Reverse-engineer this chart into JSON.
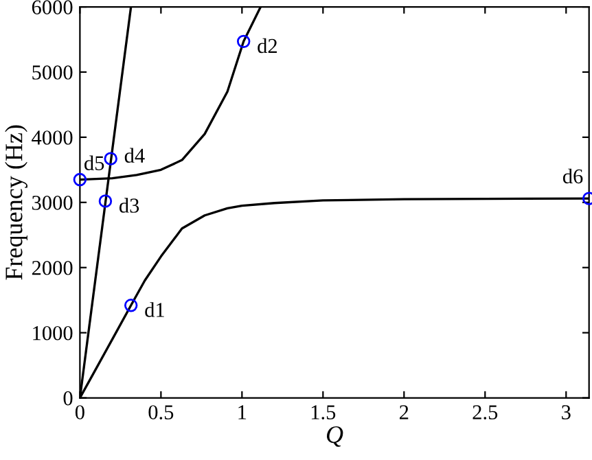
{
  "chart_data": {
    "type": "line",
    "xlabel": "Q",
    "ylabel": "Frequency (Hz)",
    "xlim": [
      0,
      3.1416
    ],
    "ylim": [
      0,
      6000
    ],
    "xticks": [
      0,
      0.5,
      1,
      1.5,
      2,
      2.5,
      3
    ],
    "yticks": [
      0,
      1000,
      2000,
      3000,
      4000,
      5000,
      6000
    ],
    "grid": false,
    "legend": false,
    "series": [
      {
        "color": "#000000",
        "x": [
          0,
          0.315
        ],
        "values": [
          0,
          6000
        ]
      },
      {
        "color": "#000000",
        "x": [
          0,
          0.1,
          0.2,
          0.315,
          0.4,
          0.5,
          0.63,
          0.77,
          0.91,
          1.0,
          1.2,
          1.5,
          2,
          2.5,
          3.1416
        ],
        "values": [
          0,
          450,
          900,
          1420,
          1800,
          2170,
          2600,
          2800,
          2910,
          2950,
          2990,
          3030,
          3050,
          3055,
          3060
        ]
      },
      {
        "color": "#000000",
        "x": [
          0,
          0.2,
          0.35,
          0.5,
          0.63,
          0.77,
          0.91,
          1.01,
          1.115
        ],
        "values": [
          3350,
          3370,
          3420,
          3500,
          3650,
          4050,
          4700,
          5470,
          6000
        ]
      },
      {
        "type": "scatter",
        "color": "#0000ff",
        "marker": "circle",
        "x": [
          0.315,
          1.01,
          0.157,
          0.19,
          0,
          3.1416
        ],
        "values": [
          1420,
          5470,
          3020,
          3670,
          3350,
          3060
        ]
      }
    ],
    "annotations": [
      {
        "text": "d1",
        "x": 0.315,
        "y": 1420
      },
      {
        "text": "d2",
        "x": 1.01,
        "y": 5470
      },
      {
        "text": "d3",
        "x": 0.157,
        "y": 3020
      },
      {
        "text": "d4",
        "x": 0.19,
        "y": 3670
      },
      {
        "text": "d5",
        "x": 0,
        "y": 3350
      },
      {
        "text": "d6",
        "x": 3.1416,
        "y": 3060
      }
    ]
  }
}
